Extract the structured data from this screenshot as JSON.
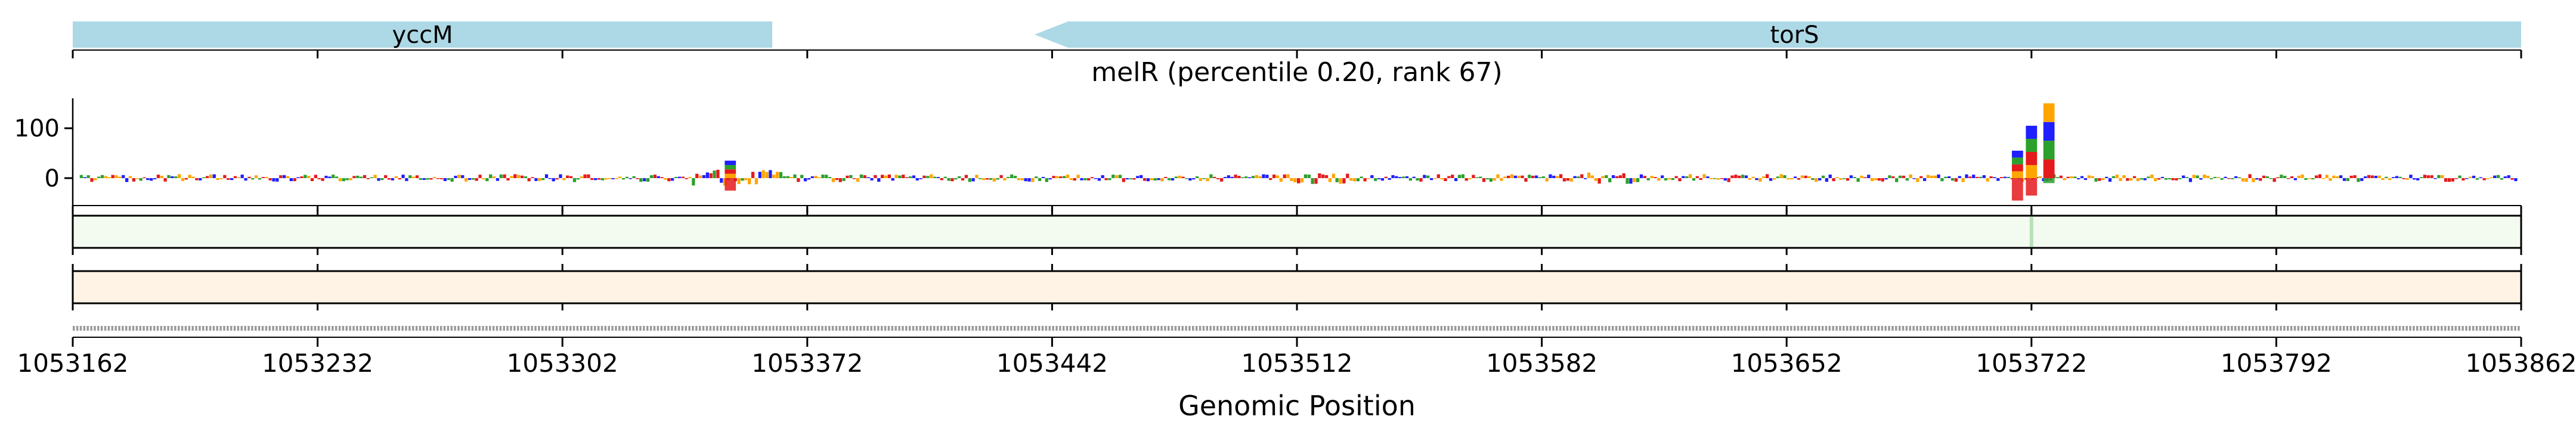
{
  "chart_data": {
    "type": "genome-track",
    "title": "melR (percentile 0.20, rank 67)",
    "xlabel": "Genomic Position",
    "xlim": [
      1053162,
      1053862
    ],
    "xticks": [
      1053162,
      1053232,
      1053302,
      1053372,
      1053442,
      1053512,
      1053582,
      1053652,
      1053722,
      1053792,
      1053862
    ],
    "xtick_labels": [
      "1053162",
      "1053232",
      "1053302",
      "1053372",
      "1053442",
      "1053512",
      "1053582",
      "1053652",
      "1053722",
      "1053792",
      "1053862"
    ],
    "genes": [
      {
        "name": "yccM",
        "start": 1053162,
        "end": 1053362,
        "strand": "+",
        "color": "#add8e6"
      },
      {
        "name": "torS",
        "start": 1053437,
        "end": 1053862,
        "strand": "-",
        "color": "#add8e6"
      }
    ],
    "logo_track": {
      "ylim": [
        -55,
        160
      ],
      "yticks": [
        0,
        100
      ],
      "ytick_labels": [
        "0",
        "100"
      ],
      "base_colors": {
        "A": "#2ca02c",
        "C": "#1f1fff",
        "G": "#ffa500",
        "T": "#e41a1c"
      },
      "peaks": [
        {
          "position": 1053350,
          "up": 35,
          "down": -25
        },
        {
          "position": 1053718,
          "up": 55,
          "down": -45
        },
        {
          "position": 1053722,
          "up": 105,
          "down": -35
        },
        {
          "position": 1053727,
          "up": 150,
          "down": -10
        }
      ],
      "baseline_noise": 8
    },
    "track2": {
      "type": "heatmap",
      "colormap": "greens",
      "background": "#f3faf0",
      "highlights": [
        {
          "position": 1053722,
          "intensity": 0.6
        }
      ]
    },
    "track3": {
      "type": "heatmap",
      "colormap": "oranges",
      "background": "#fff3e6"
    }
  }
}
